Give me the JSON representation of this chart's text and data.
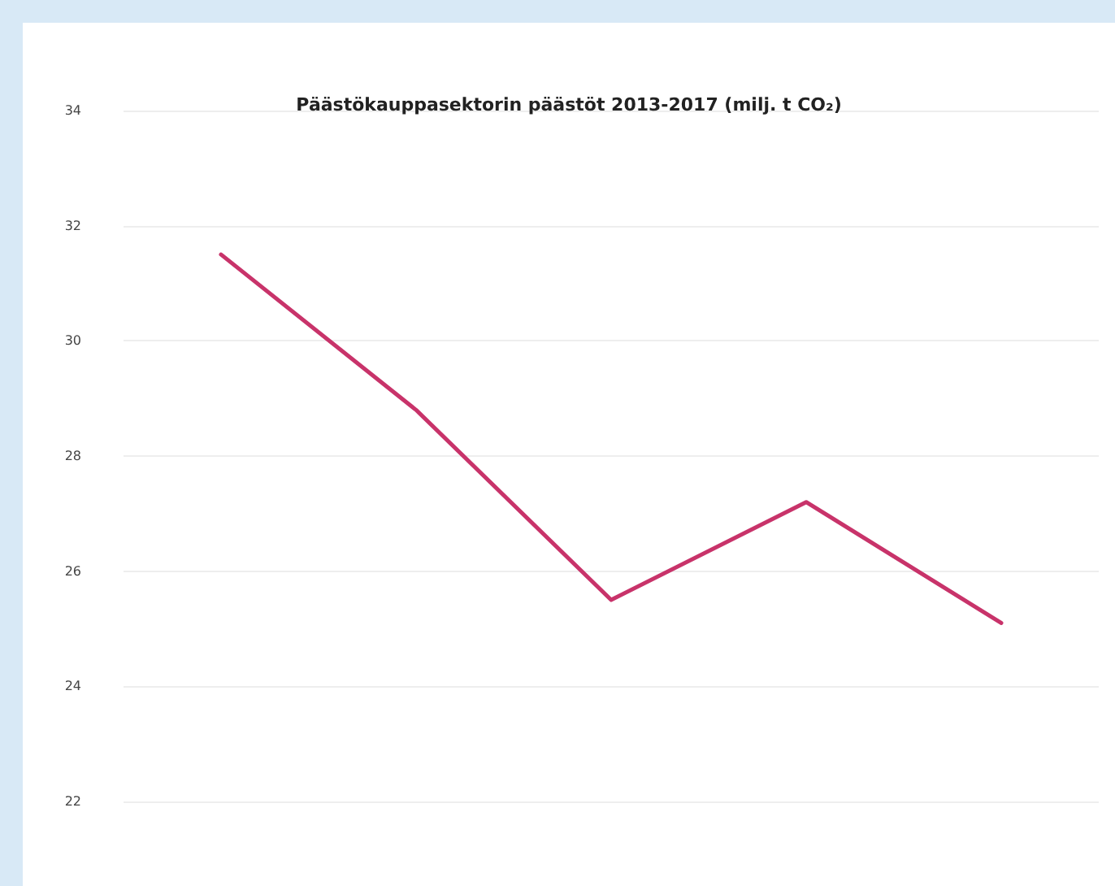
{
  "chart_data": {
    "type": "line",
    "title": "Päästökauppasektorin päästöt 2013-2017 (milj. t CO₂)",
    "categories": [
      null,
      null,
      null,
      null,
      null
    ],
    "series": [
      {
        "color": "#c8336a",
        "values": [
          31.5,
          28.8,
          25.5,
          27.2,
          25.1
        ]
      }
    ],
    "ylim": [
      22,
      34
    ],
    "yticks": [
      22,
      24,
      26,
      28,
      30,
      32,
      34
    ],
    "grid": "y",
    "marker": "none",
    "line_style": "solid"
  }
}
